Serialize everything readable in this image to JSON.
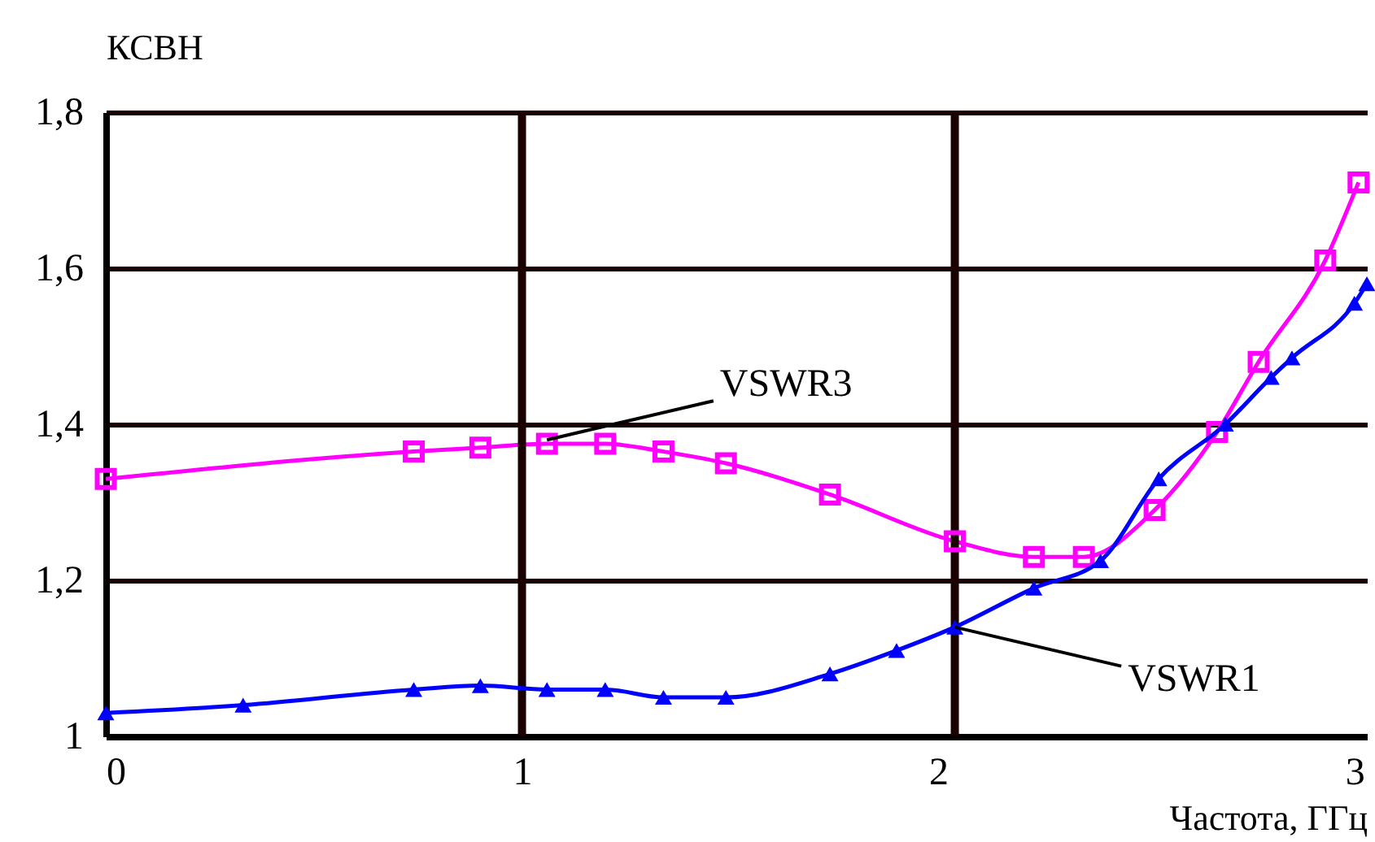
{
  "chart_data": {
    "type": "line",
    "xlabel": "Частота, ГГц",
    "ylabel": "КСВН",
    "xlim": [
      0,
      3.03
    ],
    "xticks": [
      0,
      1,
      2,
      3
    ],
    "ylim": [
      1,
      1.8
    ],
    "yticks": [
      {
        "value": 1,
        "label": "1"
      },
      {
        "value": 1.2,
        "label": "1,2"
      },
      {
        "value": 1.4,
        "label": "1,4"
      },
      {
        "value": 1.6,
        "label": "1,6"
      },
      {
        "value": 1.8,
        "label": "1,8"
      }
    ],
    "grid": "y",
    "line_style": "solid",
    "ref_lines": [
      {
        "axis": "x",
        "value": 1,
        "label": null,
        "color": "#1a0000"
      },
      {
        "axis": "x",
        "value": 2.04,
        "label": null,
        "color": "#1a0000"
      }
    ],
    "series": [
      {
        "color": "#ff00ff",
        "marker": "square",
        "x": [
          0,
          0.74,
          0.9,
          1.06,
          1.2,
          1.34,
          1.49,
          1.74,
          2.04,
          2.23,
          2.35,
          2.52,
          2.67,
          2.77,
          2.93,
          3.01
        ],
        "values": [
          1.33,
          1.365,
          1.37,
          1.375,
          1.375,
          1.365,
          1.35,
          1.31,
          1.25,
          1.23,
          1.23,
          1.29,
          1.39,
          1.48,
          1.61,
          1.71
        ]
      },
      {
        "color": "#0000ff",
        "marker": "triangle",
        "x": [
          0,
          0.33,
          0.74,
          0.9,
          1.06,
          1.2,
          1.34,
          1.49,
          1.74,
          1.9,
          2.04,
          2.23,
          2.39,
          2.53,
          2.69,
          2.8,
          2.85,
          3.0,
          3.03
        ],
        "values": [
          1.03,
          1.04,
          1.06,
          1.065,
          1.06,
          1.06,
          1.05,
          1.05,
          1.08,
          1.11,
          1.14,
          1.19,
          1.225,
          1.33,
          1.4,
          1.46,
          1.485,
          1.555,
          1.58
        ]
      }
    ],
    "annotations": [
      {
        "text": "VSWR3",
        "x": 1.06,
        "y": 1.38
      },
      {
        "text": "VSWR1",
        "x": 2.04,
        "y": 1.14
      }
    ]
  }
}
